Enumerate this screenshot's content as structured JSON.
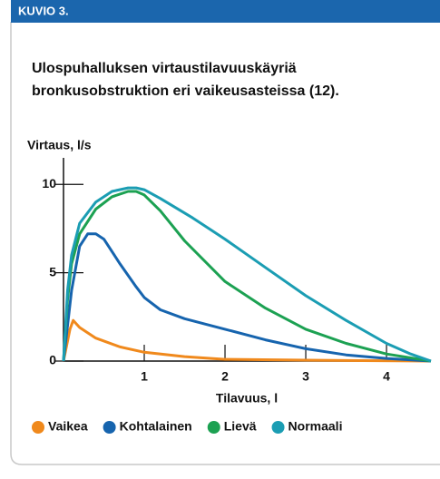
{
  "header": "KUVIO 3.",
  "chart_data": {
    "type": "line",
    "title": [
      "Ulospuhalluksen virtaustilavuuskäyriä",
      "bronkusobstruktion eri vaikeusasteissa (12)."
    ],
    "y_label": "Virtaus, l/s",
    "x_label": "Tilavuus, l",
    "xlim": [
      0,
      4.55
    ],
    "ylim": [
      0,
      11.5
    ],
    "xticks": [
      1,
      2,
      3,
      4
    ],
    "yticks": [
      0,
      5,
      10
    ],
    "grid": false,
    "series": [
      {
        "name": "Vaikea",
        "color": "#f0891c",
        "x": [
          0,
          0.08,
          0.12,
          0.2,
          0.4,
          0.7,
          1.0,
          1.5,
          2.0,
          3.0,
          4.55
        ],
        "values": [
          0,
          1.8,
          2.3,
          1.9,
          1.3,
          0.8,
          0.5,
          0.25,
          0.1,
          0.05,
          0
        ]
      },
      {
        "name": "Kohtalainen",
        "color": "#1664ae",
        "x": [
          0,
          0.1,
          0.2,
          0.3,
          0.4,
          0.5,
          0.7,
          0.9,
          1.0,
          1.2,
          1.5,
          2.0,
          2.5,
          3.0,
          3.5,
          4.0,
          4.55
        ],
        "values": [
          0,
          4,
          6.5,
          7.2,
          7.2,
          6.9,
          5.5,
          4.2,
          3.6,
          2.9,
          2.4,
          1.8,
          1.2,
          0.7,
          0.35,
          0.15,
          0
        ]
      },
      {
        "name": "Lievä",
        "color": "#1ca152",
        "x": [
          0,
          0.05,
          0.1,
          0.2,
          0.4,
          0.6,
          0.8,
          0.9,
          1.0,
          1.2,
          1.5,
          2.0,
          2.5,
          3.0,
          3.5,
          4.0,
          4.55
        ],
        "values": [
          0,
          3.5,
          5.5,
          7.2,
          8.6,
          9.3,
          9.6,
          9.6,
          9.4,
          8.5,
          6.8,
          4.5,
          3.0,
          1.8,
          1.0,
          0.4,
          0
        ]
      },
      {
        "name": "Normaali",
        "color": "#1b9db3",
        "x": [
          0,
          0.05,
          0.1,
          0.2,
          0.4,
          0.6,
          0.8,
          0.9,
          1.0,
          1.2,
          1.6,
          2.0,
          2.5,
          3.0,
          3.5,
          4.0,
          4.3,
          4.55
        ],
        "values": [
          0,
          4,
          6,
          7.8,
          9,
          9.6,
          9.8,
          9.8,
          9.7,
          9.2,
          8.1,
          6.9,
          5.3,
          3.7,
          2.3,
          1.0,
          0.4,
          0
        ]
      }
    ]
  }
}
